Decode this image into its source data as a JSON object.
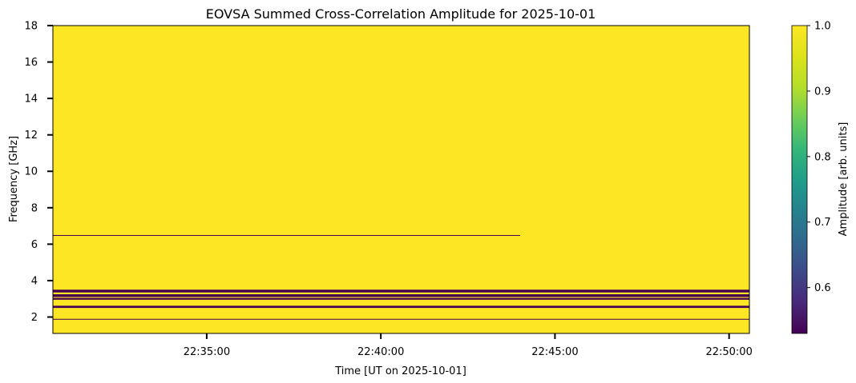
{
  "chart_data": {
    "type": "heatmap",
    "title": "EOVSA Summed Cross-Correlation Amplitude for 2025-10-01",
    "xlabel": "Time [UT on 2025-10-01]",
    "ylabel": "Frequency [GHz]",
    "colorbar_label": "Amplitude [arb. units]",
    "colormap": "viridis",
    "x_start": "22:30:35",
    "x_end": "22:50:35",
    "xticks": [
      "22:35:00",
      "22:40:00",
      "22:45:00",
      "22:50:00"
    ],
    "ylim": [
      1.1,
      18.0
    ],
    "yticks": [
      2,
      4,
      6,
      8,
      10,
      12,
      14,
      16,
      18
    ],
    "color_range": [
      0.53,
      1.0
    ],
    "colorbar_ticks": [
      0.6,
      0.7,
      0.8,
      0.9,
      1.0
    ],
    "background_value": 1.0,
    "bands": [
      {
        "freq_range": [
          3.35,
          3.5
        ],
        "value": 0.53
      },
      {
        "freq_range": [
          3.1,
          3.25
        ],
        "value": 0.53
      },
      {
        "freq_range": [
          2.95,
          3.05
        ],
        "value": 0.53
      },
      {
        "freq_range": [
          2.5,
          2.62
        ],
        "value": 0.53
      },
      {
        "freq_range": [
          1.86,
          1.9
        ],
        "value": 0.53
      },
      {
        "freq_range": [
          6.47,
          6.5
        ],
        "value": 0.53,
        "time_range": [
          "22:30:35",
          "22:44:00"
        ]
      }
    ]
  },
  "labels": {
    "title": "EOVSA Summed Cross-Correlation Amplitude for 2025-10-01",
    "xlabel": "Time [UT on 2025-10-01]",
    "ylabel": "Frequency [GHz]",
    "colorbar_label": "Amplitude [arb. units]",
    "ytick_labels": [
      "2",
      "4",
      "6",
      "8",
      "10",
      "12",
      "14",
      "16",
      "18"
    ],
    "xtick_labels": [
      "22:35:00",
      "22:40:00",
      "22:45:00",
      "22:50:00"
    ],
    "cbar_tick_labels": [
      "0.6",
      "0.7",
      "0.8",
      "0.9",
      "1.0"
    ]
  }
}
